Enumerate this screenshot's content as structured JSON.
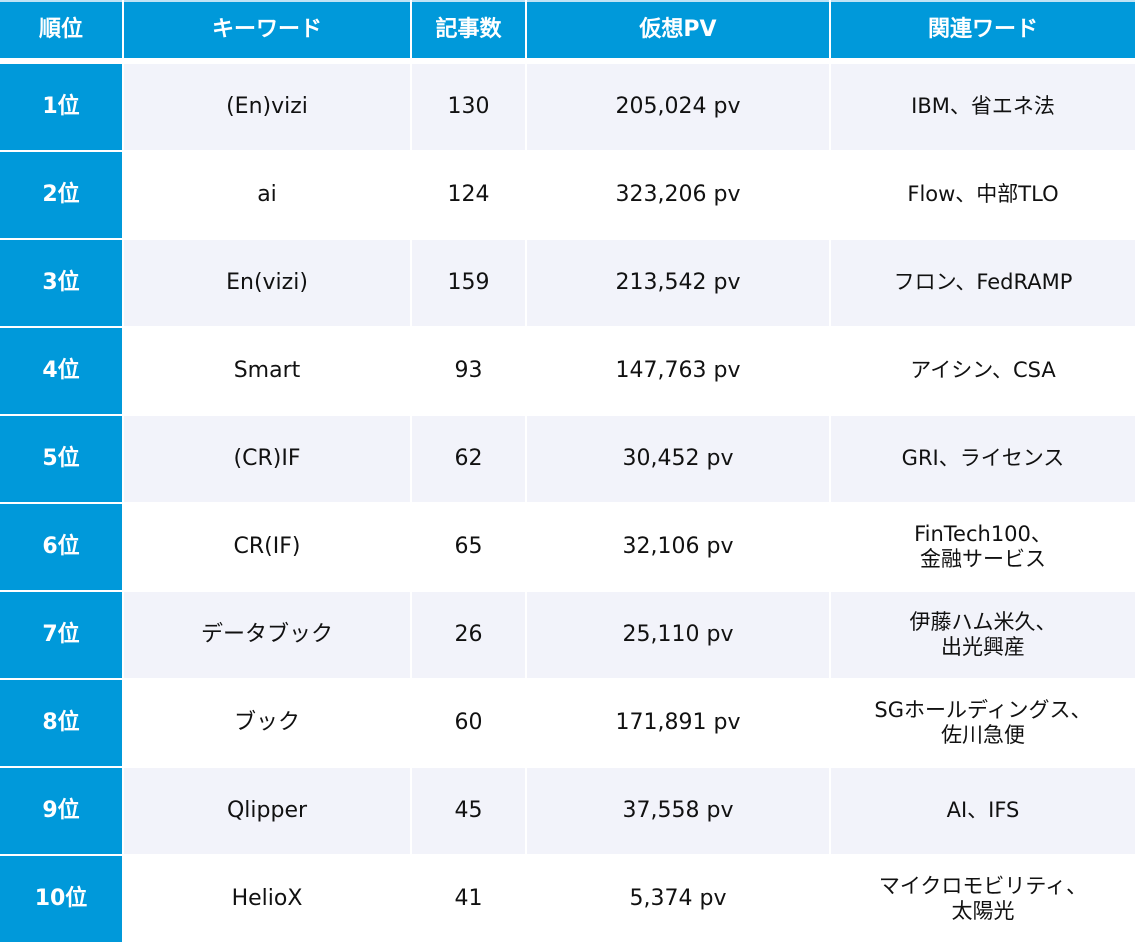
{
  "table": {
    "headers": [
      "順位",
      "キーワード",
      "記事数",
      "仮想PV",
      "関連ワード"
    ],
    "rows": [
      {
        "rank": "1位",
        "keyword": "(En)vizi",
        "articles": "130",
        "pv": "205,024 pv",
        "related": "IBM、省エネ法"
      },
      {
        "rank": "2位",
        "keyword": "ai",
        "articles": "124",
        "pv": "323,206 pv",
        "related": "Flow、中部TLO"
      },
      {
        "rank": "3位",
        "keyword": "En(vizi)",
        "articles": "159",
        "pv": "213,542 pv",
        "related": "フロン、FedRAMP"
      },
      {
        "rank": "4位",
        "keyword": "Smart",
        "articles": "93",
        "pv": "147,763 pv",
        "related": "アイシン、CSA"
      },
      {
        "rank": "5位",
        "keyword": "(CR)IF",
        "articles": "62",
        "pv": "30,452 pv",
        "related": "GRI、ライセンス"
      },
      {
        "rank": "6位",
        "keyword": "CR(IF)",
        "articles": "65",
        "pv": "32,106 pv",
        "related": "FinTech100、\n金融サービス"
      },
      {
        "rank": "7位",
        "keyword": "データブック",
        "articles": "26",
        "pv": "25,110 pv",
        "related": "伊藤ハム米久、\n出光興産"
      },
      {
        "rank": "8位",
        "keyword": "ブック",
        "articles": "60",
        "pv": "171,891 pv",
        "related": "SGホールディングス、\n佐川急便"
      },
      {
        "rank": "9位",
        "keyword": "Qlipper",
        "articles": "45",
        "pv": "37,558 pv",
        "related": "AI、IFS"
      },
      {
        "rank": "10位",
        "keyword": "HelioX",
        "articles": "41",
        "pv": "5,374 pv",
        "related": "マイクロモビリティ、\n太陽光"
      }
    ]
  },
  "colors": {
    "accent_blue": "#0099da",
    "row_alt": "#f2f3fa",
    "row_plain": "#ffffff",
    "text": "#111111"
  }
}
